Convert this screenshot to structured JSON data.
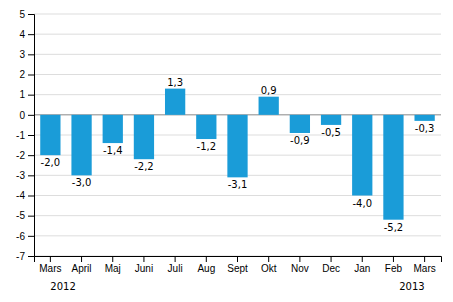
{
  "chart_data": {
    "type": "bar",
    "categories": [
      "Mars",
      "April",
      "Maj",
      "Juni",
      "Juli",
      "Aug",
      "Sept",
      "Okt",
      "Nov",
      "Dec",
      "Jan",
      "Feb",
      "Mars"
    ],
    "values": [
      -2.0,
      -3.0,
      -1.4,
      -2.2,
      1.3,
      -1.2,
      -3.1,
      0.9,
      -0.9,
      -0.5,
      -4.0,
      -5.2,
      -0.3
    ],
    "value_labels": [
      "-2,0",
      "-3,0",
      "-1,4",
      "-2,2",
      "1,3",
      "-1,2",
      "-3,1",
      "0,9",
      "-0,9",
      "-0,5",
      "-4,0",
      "-5,2",
      "-0,3"
    ],
    "data_labels": true,
    "color": "#1a9cd8",
    "ylim": [
      -7,
      5
    ],
    "yticks": [
      -7,
      -6,
      -5,
      -4,
      -3,
      -2,
      -1,
      0,
      1,
      2,
      3,
      4,
      5
    ],
    "grid": true,
    "annotations": [
      "2012",
      "2013"
    ]
  }
}
